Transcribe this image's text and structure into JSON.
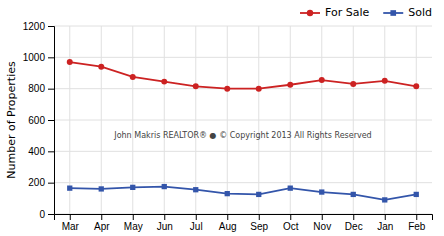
{
  "chart_data": {
    "type": "line",
    "categories": [
      "Mar",
      "Apr",
      "May",
      "Jun",
      "Jul",
      "Aug",
      "Sep",
      "Oct",
      "Nov",
      "Dec",
      "Jan",
      "Feb"
    ],
    "series": [
      {
        "name": "For Sale",
        "color": "#cc2222",
        "marker": "circle",
        "values": [
          970,
          940,
          875,
          845,
          815,
          800,
          800,
          825,
          855,
          830,
          850,
          815
        ]
      },
      {
        "name": "Sold",
        "color": "#3355aa",
        "marker": "square",
        "values": [
          165,
          160,
          170,
          175,
          155,
          130,
          125,
          165,
          140,
          125,
          90,
          125
        ]
      }
    ],
    "y_label": "Number of Properties",
    "ylim": [
      0,
      1200
    ],
    "yticks": [
      0,
      200,
      400,
      600,
      800,
      1000,
      1200
    ],
    "grid": true,
    "legend": "upper right",
    "annotation": "John Makris REALTOR®  ●  © Copyright 2013 All Rights Reserved"
  }
}
